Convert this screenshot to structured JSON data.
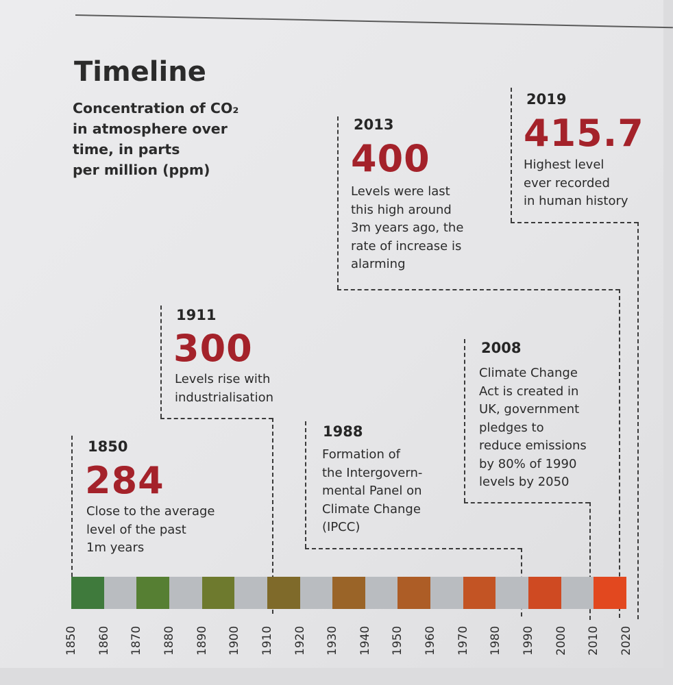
{
  "title": "Timeline",
  "subtitle": "Concentration of CO₂\nin atmosphere over\ntime, in parts\nper million (ppm)",
  "colors": {
    "accent": "#a4222a"
  },
  "events": [
    {
      "year": "1850",
      "value": "284",
      "desc": "Close to the average\nlevel of the past\n1m years"
    },
    {
      "year": "1911",
      "value": "300",
      "desc": "Levels rise with\nindustrialisation"
    },
    {
      "year": "1988",
      "value": "",
      "desc": "Formation of\nthe Intergovern-\nmental Panel on\nClimate Change\n(IPCC)"
    },
    {
      "year": "2008",
      "value": "",
      "desc": "Climate Change\nAct is created in\nUK, government\npledges to\nreduce emissions\nby 80% of 1990\nlevels by 2050"
    },
    {
      "year": "2013",
      "value": "400",
      "desc": "Levels were last\nthis high around\n3m years ago, the\nrate of increase is\nalarming"
    },
    {
      "year": "2019",
      "value": "415.7",
      "desc": "Highest level\never recorded\nin human history"
    }
  ],
  "timeline": {
    "start": 1850,
    "end": 2020,
    "ticks": [
      "1850",
      "1860",
      "1870",
      "1880",
      "1890",
      "1900",
      "1910",
      "1920",
      "1930",
      "1940",
      "1950",
      "1960",
      "1970",
      "1980",
      "1990",
      "2000",
      "2010",
      "2020"
    ],
    "segments": [
      {
        "color": "#3f7a3c"
      },
      {
        "color": "#b9bcc0"
      },
      {
        "color": "#567f33"
      },
      {
        "color": "#b9bcc0"
      },
      {
        "color": "#6e7a2e"
      },
      {
        "color": "#b9bcc0"
      },
      {
        "color": "#7f6a2a"
      },
      {
        "color": "#b9bcc0"
      },
      {
        "color": "#9a6428"
      },
      {
        "color": "#b9bcc0"
      },
      {
        "color": "#ad5d26"
      },
      {
        "color": "#b9bcc0"
      },
      {
        "color": "#c35424"
      },
      {
        "color": "#b9bcc0"
      },
      {
        "color": "#cf4a22"
      },
      {
        "color": "#b9bcc0"
      },
      {
        "color": "#e2481f"
      }
    ]
  }
}
